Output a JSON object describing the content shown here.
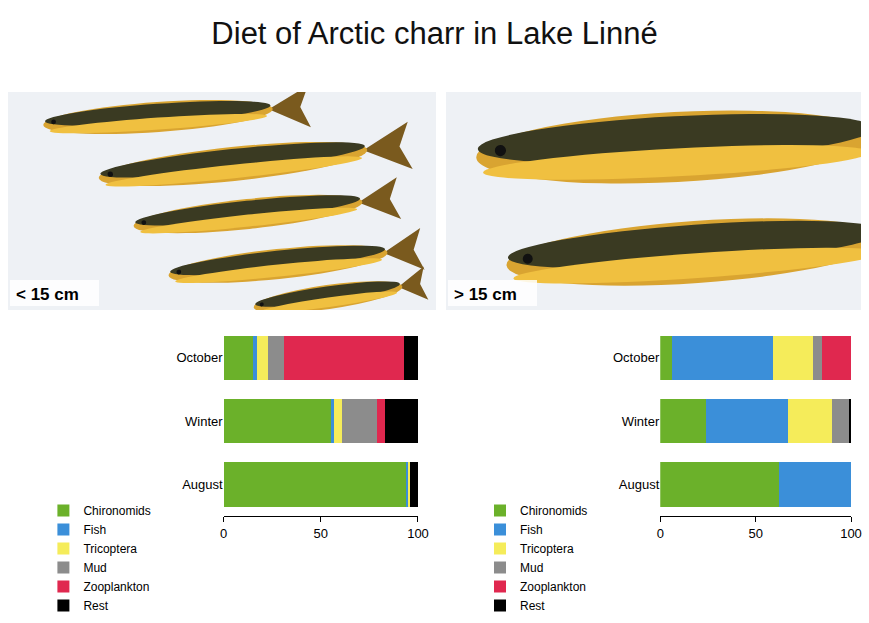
{
  "title": "Diet of Arctic charr in Lake Linné",
  "chart_data": [
    {
      "type": "bar",
      "subtitle": "< 15 cm",
      "orientation": "horizontal",
      "stacked": true,
      "grid": false,
      "legend": "bottom",
      "categories": [
        "October",
        "Winter",
        "August"
      ],
      "xlim": [
        0,
        100
      ],
      "xticks": [
        0,
        50,
        100
      ],
      "series": [
        {
          "name": "Chironomids",
          "color": "#6bb12a",
          "values": [
            15,
            55,
            94
          ]
        },
        {
          "name": "Fish",
          "color": "#3b8fd9",
          "values": [
            2,
            2,
            1
          ]
        },
        {
          "name": "Tricoptera",
          "color": "#f5ec5a",
          "values": [
            6,
            4,
            1
          ]
        },
        {
          "name": "Mud",
          "color": "#8c8c8c",
          "values": [
            8,
            18,
            0
          ]
        },
        {
          "name": "Zooplankton",
          "color": "#e0284f",
          "values": [
            62,
            4,
            0
          ]
        },
        {
          "name": "Rest",
          "color": "#000000",
          "values": [
            7,
            17,
            4
          ]
        }
      ]
    },
    {
      "type": "bar",
      "subtitle": "> 15 cm",
      "orientation": "horizontal",
      "stacked": true,
      "grid": false,
      "legend": "bottom",
      "categories": [
        "October",
        "Winter",
        "August"
      ],
      "xlim": [
        0,
        100
      ],
      "xticks": [
        0,
        50,
        100
      ],
      "series": [
        {
          "name": "Chironomids",
          "color": "#6bb12a",
          "values": [
            6,
            24,
            62
          ]
        },
        {
          "name": "Fish",
          "color": "#3b8fd9",
          "values": [
            53,
            43,
            38
          ]
        },
        {
          "name": "Tricoptera",
          "color": "#f5ec5a",
          "values": [
            21,
            23,
            0
          ]
        },
        {
          "name": "Mud",
          "color": "#8c8c8c",
          "values": [
            5,
            9,
            0
          ]
        },
        {
          "name": "Zooplankton",
          "color": "#e0284f",
          "values": [
            15,
            0,
            0
          ]
        },
        {
          "name": "Rest",
          "color": "#000000",
          "values": [
            0,
            1,
            0
          ]
        }
      ]
    }
  ]
}
